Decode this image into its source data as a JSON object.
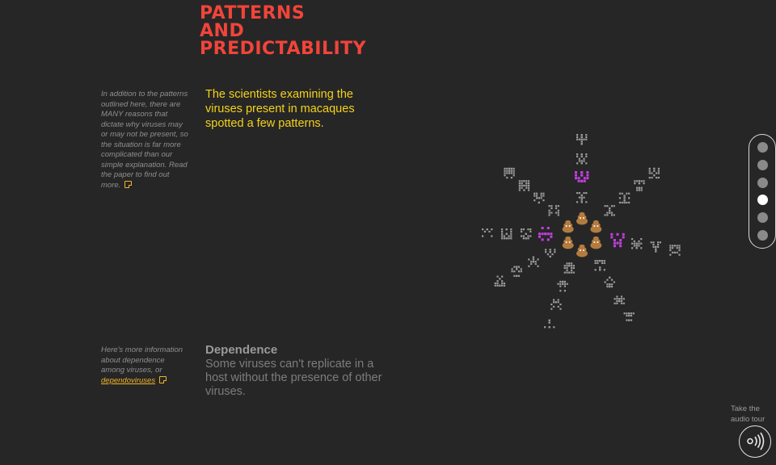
{
  "title": {
    "line1": "PATTERNS",
    "line2": "AND",
    "line3": "PREDICTABILITY"
  },
  "side_note_1": {
    "text": "In addition to the patterns outlined here, there are MANY reasons that dictate why viruses may or may not be present, so the situation is far more complicated than our simple explanation. Read the paper to find out more."
  },
  "lead_text": "The scientists examining the viruses present in macaques spotted a few patterns.",
  "side_note_2": {
    "text": "Here's more information about dependence among viruses, or",
    "link": "dependoviruses"
  },
  "section": {
    "heading": "Dependence",
    "body": "Some viruses can't replicate in a host without the presence of other viruses."
  },
  "nav": {
    "dot_count": 6,
    "active_index": 3
  },
  "audio": {
    "label": "Take the audio tour"
  },
  "colors": {
    "title": "#f2443a",
    "lead": "#f5d21a",
    "link": "#f0b429",
    "highlight_virus": "#c33fe0",
    "virus": "#9a9a9a",
    "poop": "#b47b3e"
  },
  "icons": {
    "virus": "pixel-virus-icon",
    "host": "poop-icon",
    "audio": "audio-wave-icon",
    "note": "note-icon"
  }
}
